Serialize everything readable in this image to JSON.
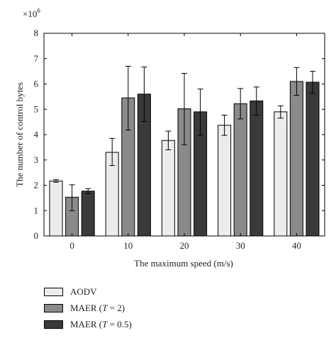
{
  "chart_data": {
    "type": "bar",
    "xlabel": "The maximum speed (m/s)",
    "ylabel": "The number of control bytes",
    "y_multiplier": "×10",
    "y_exponent": "6",
    "ylim": [
      0,
      8
    ],
    "yticks": [
      "0",
      "1",
      "2",
      "3",
      "4",
      "5",
      "6",
      "7",
      "8"
    ],
    "categories": [
      "0",
      "10",
      "20",
      "30",
      "40"
    ],
    "grid": false,
    "legend_position": "bottom-left, below plot",
    "series": [
      {
        "name": "AODV",
        "color": "#ececec",
        "values": [
          2.17,
          3.3,
          3.77,
          4.37,
          4.9
        ],
        "error_low": [
          2.12,
          2.78,
          3.4,
          3.97,
          4.65
        ],
        "error_high": [
          2.23,
          3.85,
          4.14,
          4.77,
          5.14
        ]
      },
      {
        "name": "MAER (T = 2)",
        "name_parts": {
          "prefix": "MAER (",
          "italic": "T",
          "suffix": " = 2)"
        },
        "color": "#8a8a8a",
        "values": [
          1.53,
          5.45,
          5.02,
          5.22,
          6.1
        ],
        "error_low": [
          1.0,
          4.18,
          3.6,
          4.62,
          5.55
        ],
        "error_high": [
          2.02,
          6.7,
          6.42,
          5.82,
          6.65
        ]
      },
      {
        "name": "MAER (T = 0.5)",
        "name_parts": {
          "prefix": "MAER (",
          "italic": "T",
          "suffix": " = 0.5)"
        },
        "color": "#3a3a3a",
        "values": [
          1.77,
          5.6,
          4.9,
          5.33,
          6.07
        ],
        "error_low": [
          1.67,
          4.52,
          3.98,
          4.77,
          5.63
        ],
        "error_high": [
          1.87,
          6.67,
          5.8,
          5.88,
          6.5
        ]
      }
    ]
  }
}
